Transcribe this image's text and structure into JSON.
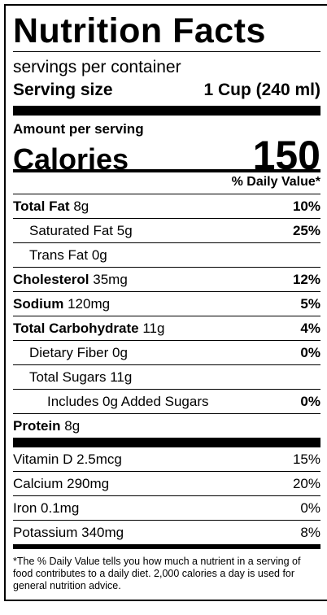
{
  "title": "Nutrition Facts",
  "servings_per_container": "servings per container",
  "serving_size": {
    "label": "Serving size",
    "value": "1 Cup (240 ml)"
  },
  "amount_per_serving": "Amount per serving",
  "calories": {
    "label": "Calories",
    "value": "150"
  },
  "daily_value_header": "% Daily Value*",
  "nutrients": [
    {
      "name": "Total Fat",
      "amount": "8g",
      "dv": "10%"
    },
    {
      "name": "Saturated Fat",
      "amount": "5g",
      "dv": "25%"
    },
    {
      "name": "Trans Fat",
      "amount": "0g",
      "dv": ""
    },
    {
      "name": "Cholesterol",
      "amount": "35mg",
      "dv": "12%"
    },
    {
      "name": "Sodium",
      "amount": "120mg",
      "dv": "5%"
    },
    {
      "name": "Total Carbohydrate",
      "amount": "11g",
      "dv": "4%"
    },
    {
      "name": "Dietary Fiber",
      "amount": "0g",
      "dv": "0%"
    },
    {
      "name": "Total Sugars",
      "amount": "11g",
      "dv": ""
    },
    {
      "name": "Includes 0g Added Sugars",
      "amount": "",
      "dv": "0%"
    },
    {
      "name": "Protein",
      "amount": "8g",
      "dv": ""
    }
  ],
  "vitamins": [
    {
      "name": "Vitamin D",
      "amount": "2.5mcg",
      "dv": "15%"
    },
    {
      "name": "Calcium",
      "amount": "290mg",
      "dv": "20%"
    },
    {
      "name": "Iron",
      "amount": "0.1mg",
      "dv": "0%"
    },
    {
      "name": "Potassium",
      "amount": "340mg",
      "dv": "8%"
    }
  ],
  "footnote": "*The % Daily Value tells you how much a nutrient in a serving of food contributes to a daily diet. 2,000 calories a day is used for general nutrition advice."
}
